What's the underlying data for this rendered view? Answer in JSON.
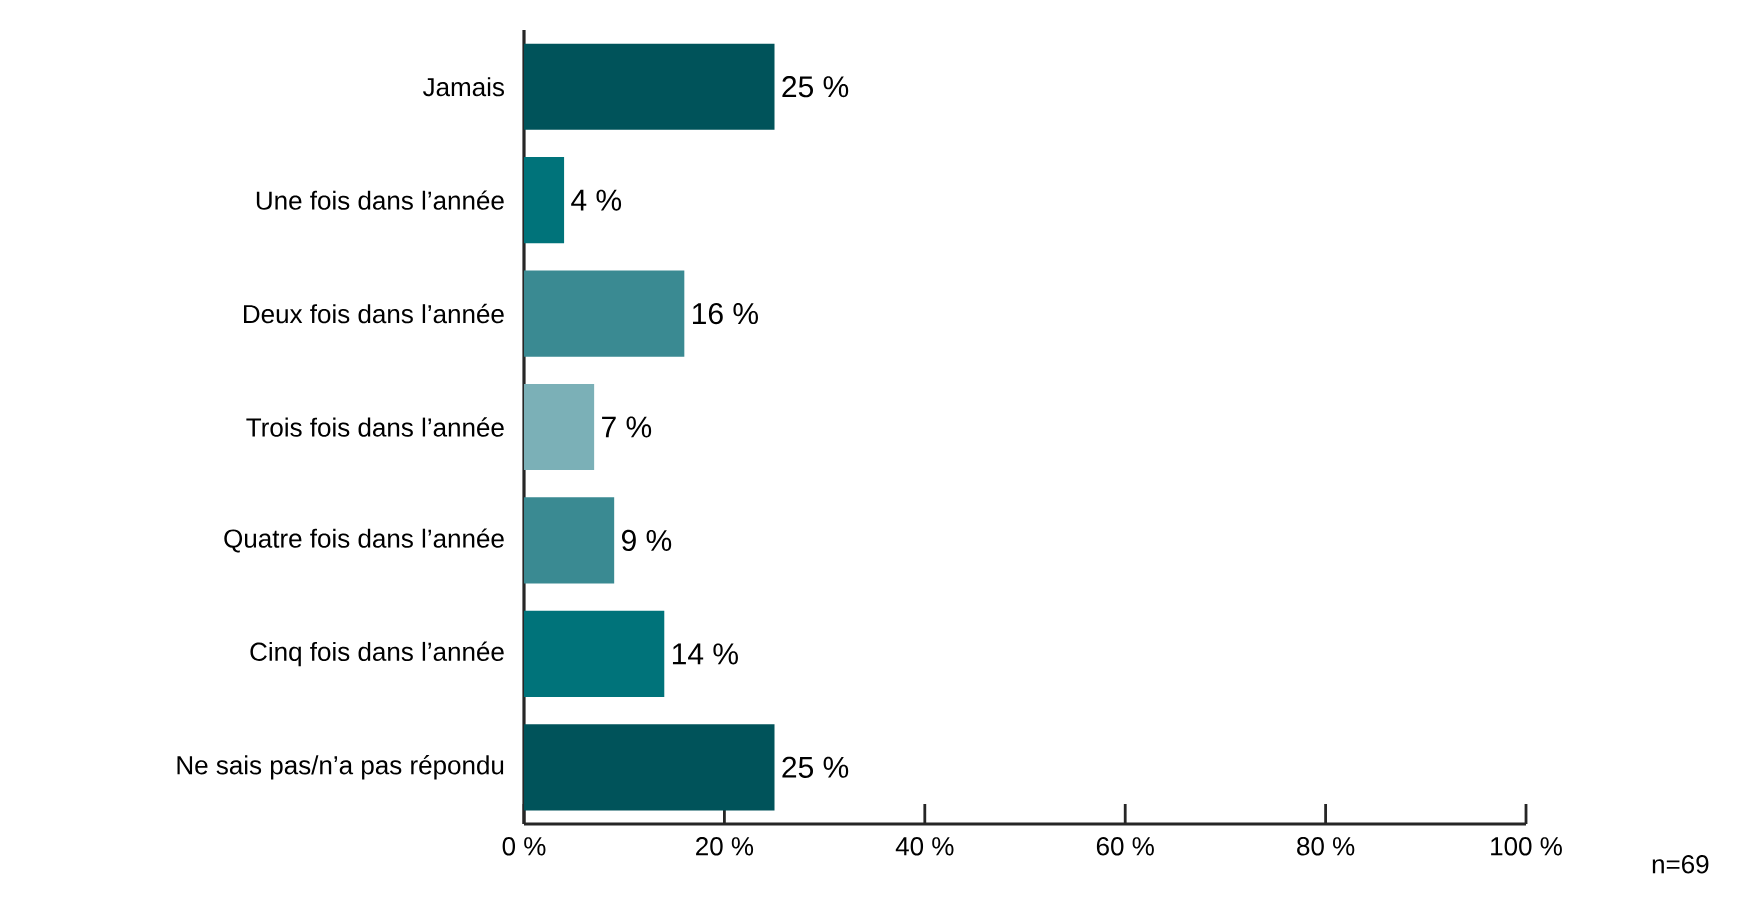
{
  "chart_data": {
    "type": "bar",
    "orientation": "horizontal",
    "categories": [
      "Jamais",
      "Une fois dans l’année",
      "Deux fois dans l’année",
      "Trois fois dans l’année",
      "Quatre fois dans l’année",
      "Cinq fois dans l’année",
      "Ne sais pas/n’a pas répondu"
    ],
    "values": [
      25,
      4,
      16,
      7,
      9,
      14,
      25
    ],
    "value_labels": [
      "25 %",
      "4 %",
      "16 %",
      "7 %",
      "9 %",
      "14 %",
      "25 %"
    ],
    "colors": [
      "#00535a",
      "#00737a",
      "#3a8a92",
      "#7bb0b7",
      "#3a8a92",
      "#00737a",
      "#00535a"
    ],
    "xlim": [
      0,
      100
    ],
    "xticks": [
      {
        "value": 0,
        "label": "0 %"
      },
      {
        "value": 20,
        "label": "20 %"
      },
      {
        "value": 40,
        "label": "40 %"
      },
      {
        "value": 60,
        "label": "60 %"
      },
      {
        "value": 80,
        "label": "80 %"
      },
      {
        "value": 100,
        "label": "100 %"
      }
    ],
    "annotations": [
      "n=69"
    ]
  }
}
